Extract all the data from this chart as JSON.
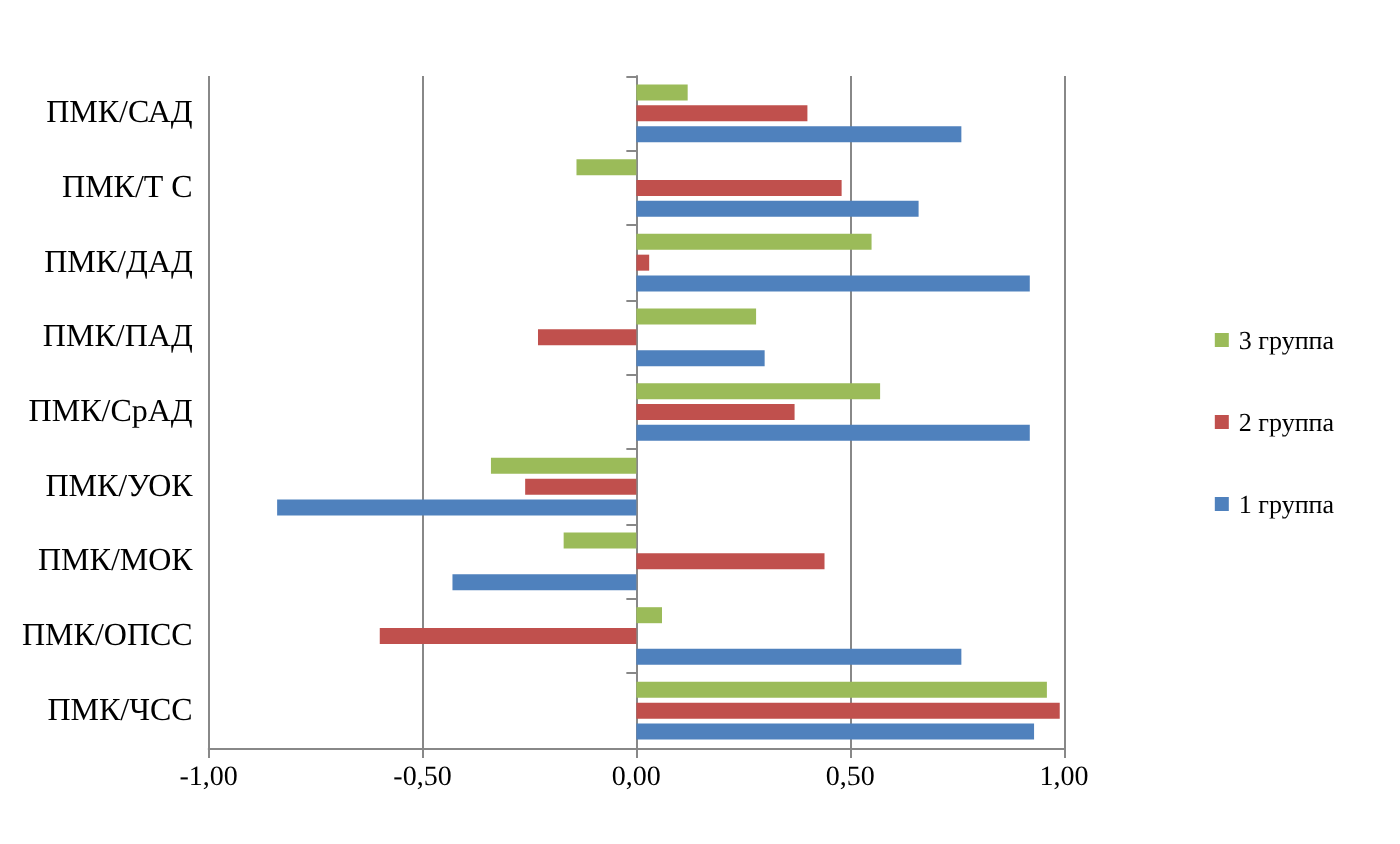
{
  "chart_data": {
    "type": "bar",
    "orientation": "horizontal",
    "categories": [
      "ПМК/САД",
      "ПМК/Т С",
      "ПМК/ДАД",
      "ПМК/ПАД",
      "ПМК/СрАД",
      "ПМК/УОК",
      "ПМК/МОК",
      "ПМК/ОПСС",
      "ПМК/ЧСС"
    ],
    "series": [
      {
        "name": "3 группа",
        "color": "#9bbb59",
        "values": [
          0.12,
          -0.14,
          0.55,
          0.28,
          0.57,
          -0.34,
          -0.17,
          0.06,
          0.96
        ]
      },
      {
        "name": "2 группа",
        "color": "#c0504d",
        "values": [
          0.4,
          0.48,
          0.03,
          -0.23,
          0.37,
          -0.26,
          0.44,
          -0.6,
          0.99
        ]
      },
      {
        "name": "1 группа",
        "color": "#4f81bd",
        "values": [
          0.76,
          0.66,
          0.92,
          0.3,
          0.92,
          -0.84,
          -0.43,
          0.76,
          0.93
        ]
      }
    ],
    "xlim": [
      -1,
      1
    ],
    "xticks": [
      {
        "value": -1,
        "label": "-1,00"
      },
      {
        "value": -0.5,
        "label": "-0,50"
      },
      {
        "value": 0,
        "label": "0,00"
      },
      {
        "value": 0.5,
        "label": "0,50"
      },
      {
        "value": 1,
        "label": "1,00"
      }
    ],
    "grid": "x",
    "legend": "right"
  }
}
